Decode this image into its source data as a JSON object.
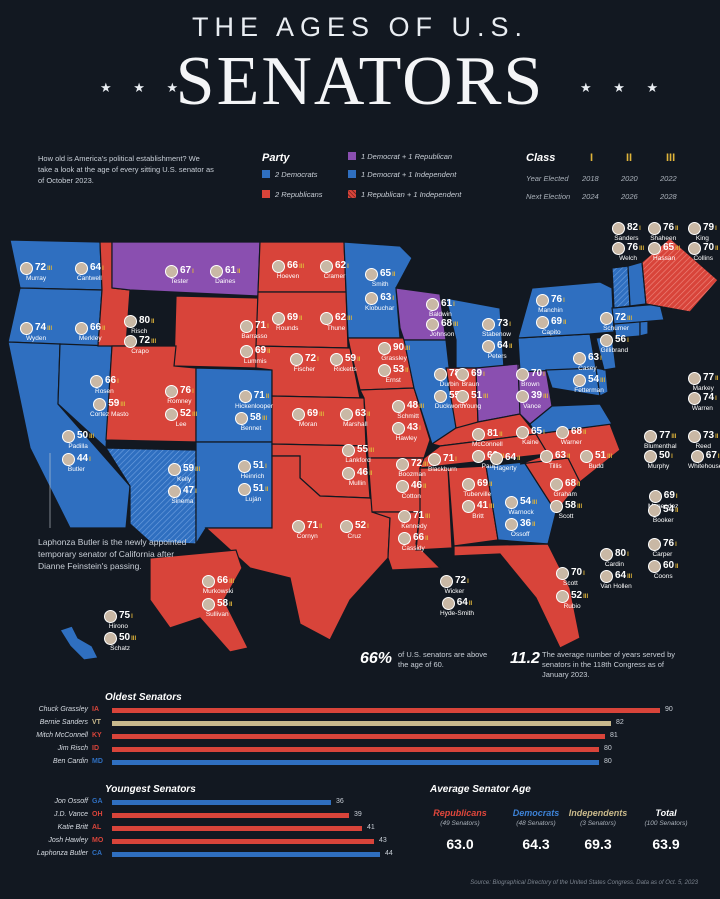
{
  "header": {
    "title_top": "THE AGES OF U.S.",
    "title_main": "SENATORS",
    "stars": "★ ★ ★"
  },
  "intro": "How old is America's political establishment? We take a look at the age of every sitting U.S. senator as of October 2023.",
  "party_legend": {
    "heading": "Party",
    "items": [
      {
        "label": "2 Democrats",
        "color": "#2f6fc0"
      },
      {
        "label": "2 Republicans",
        "color": "#d8443a"
      },
      {
        "label": "1 Democrat + 1 Republican",
        "color": "#8a4fb0"
      },
      {
        "label": "1 Democrat + 1 Independent",
        "color": "#2f6fc0"
      },
      {
        "label": "1 Republican + 1 Independent",
        "color": "#d8443a"
      }
    ]
  },
  "class_legend": {
    "heading": "Class",
    "classes": [
      "I",
      "II",
      "III"
    ],
    "rows": [
      {
        "label": "Year Elected",
        "values": [
          "2018",
          "2020",
          "2022"
        ]
      },
      {
        "label": "Next Election",
        "values": [
          "2024",
          "2026",
          "2028"
        ]
      }
    ]
  },
  "map": {
    "senators": [
      {
        "name": "Murray",
        "age": "72",
        "cls": "III"
      },
      {
        "name": "Cantwell",
        "age": "64",
        "cls": "I"
      },
      {
        "name": "Wyden",
        "age": "74",
        "cls": "III"
      },
      {
        "name": "Merkley",
        "age": "66",
        "cls": "II"
      },
      {
        "name": "Tester",
        "age": "67",
        "cls": "I"
      },
      {
        "name": "Daines",
        "age": "61",
        "cls": "II"
      },
      {
        "name": "Risch",
        "age": "80",
        "cls": "II"
      },
      {
        "name": "Crapo",
        "age": "72",
        "cls": "III"
      },
      {
        "name": "Hoeven",
        "age": "66",
        "cls": "III"
      },
      {
        "name": "Cramer",
        "age": "62",
        "cls": "I"
      },
      {
        "name": "Smith",
        "age": "65",
        "cls": "II"
      },
      {
        "name": "Klobuchar",
        "age": "63",
        "cls": "I"
      },
      {
        "name": "Rounds",
        "age": "69",
        "cls": "II"
      },
      {
        "name": "Thune",
        "age": "62",
        "cls": "III"
      },
      {
        "name": "Barrasso",
        "age": "71",
        "cls": "I"
      },
      {
        "name": "Lummis",
        "age": "69",
        "cls": "II"
      },
      {
        "name": "Rosen",
        "age": "66",
        "cls": "I"
      },
      {
        "name": "Cortez Masto",
        "age": "59",
        "cls": "III"
      },
      {
        "name": "Romney",
        "age": "76",
        "cls": "I"
      },
      {
        "name": "Lee",
        "age": "52",
        "cls": "III"
      },
      {
        "name": "Hickenlooper",
        "age": "71",
        "cls": "II"
      },
      {
        "name": "Bennet",
        "age": "58",
        "cls": "III"
      },
      {
        "name": "Fischer",
        "age": "72",
        "cls": "I"
      },
      {
        "name": "Ricketts",
        "age": "59",
        "cls": "II"
      },
      {
        "name": "Grassley",
        "age": "90",
        "cls": "III"
      },
      {
        "name": "Ernst",
        "age": "53",
        "cls": "II"
      },
      {
        "name": "Padilla",
        "age": "50",
        "cls": "III"
      },
      {
        "name": "Butler",
        "age": "44",
        "cls": "I"
      },
      {
        "name": "Kelly",
        "age": "59",
        "cls": "III"
      },
      {
        "name": "Sinema",
        "age": "47",
        "cls": "I"
      },
      {
        "name": "Heinrich",
        "age": "51",
        "cls": "I"
      },
      {
        "name": "Luján",
        "age": "51",
        "cls": "II"
      },
      {
        "name": "Moran",
        "age": "69",
        "cls": "III"
      },
      {
        "name": "Marshall",
        "age": "63",
        "cls": "II"
      },
      {
        "name": "Schmitt",
        "age": "48",
        "cls": "III"
      },
      {
        "name": "Hawley",
        "age": "43",
        "cls": "I"
      },
      {
        "name": "Lankford",
        "age": "55",
        "cls": "III"
      },
      {
        "name": "Mullin",
        "age": "46",
        "cls": "II"
      },
      {
        "name": "Boozman",
        "age": "72",
        "cls": "III"
      },
      {
        "name": "Cotton",
        "age": "46",
        "cls": "II"
      },
      {
        "name": "Cornyn",
        "age": "71",
        "cls": "II"
      },
      {
        "name": "Cruz",
        "age": "52",
        "cls": "I"
      },
      {
        "name": "Kennedy",
        "age": "71",
        "cls": "III"
      },
      {
        "name": "Cassidy",
        "age": "66",
        "cls": "II"
      },
      {
        "name": "Baldwin",
        "age": "61",
        "cls": "I"
      },
      {
        "name": "Johnson",
        "age": "68",
        "cls": "III"
      },
      {
        "name": "Durbin",
        "age": "78",
        "cls": "II"
      },
      {
        "name": "Duckworth",
        "age": "55",
        "cls": "III"
      },
      {
        "name": "Stabenow",
        "age": "73",
        "cls": "I"
      },
      {
        "name": "Peters",
        "age": "64",
        "cls": "II"
      },
      {
        "name": "Braun",
        "age": "69",
        "cls": "I"
      },
      {
        "name": "Young",
        "age": "51",
        "cls": "III"
      },
      {
        "name": "Brown",
        "age": "70",
        "cls": "I"
      },
      {
        "name": "Vance",
        "age": "39",
        "cls": "III"
      },
      {
        "name": "McConnell",
        "age": "81",
        "cls": "II"
      },
      {
        "name": "Paul",
        "age": "60",
        "cls": "III"
      },
      {
        "name": "Blackburn",
        "age": "71",
        "cls": "I"
      },
      {
        "name": "Hagerty",
        "age": "64",
        "cls": "II"
      },
      {
        "name": "Wicker",
        "age": "72",
        "cls": "I"
      },
      {
        "name": "Hyde-Smith",
        "age": "64",
        "cls": "II"
      },
      {
        "name": "Tuberville",
        "age": "69",
        "cls": "II"
      },
      {
        "name": "Britt",
        "age": "41",
        "cls": "III"
      },
      {
        "name": "Warnock",
        "age": "54",
        "cls": "III"
      },
      {
        "name": "Ossoff",
        "age": "36",
        "cls": "II"
      },
      {
        "name": "Scott",
        "age": "70",
        "cls": "I"
      },
      {
        "name": "Rubio",
        "age": "52",
        "cls": "III"
      },
      {
        "name": "Graham",
        "age": "68",
        "cls": "II"
      },
      {
        "name": "Scott",
        "age": "58",
        "cls": "III"
      },
      {
        "name": "Tillis",
        "age": "63",
        "cls": "II"
      },
      {
        "name": "Budd",
        "age": "51",
        "cls": "III"
      },
      {
        "name": "Manchin",
        "age": "76",
        "cls": "I"
      },
      {
        "name": "Capito",
        "age": "69",
        "cls": "II"
      },
      {
        "name": "Kaine",
        "age": "65",
        "cls": "I"
      },
      {
        "name": "Warner",
        "age": "68",
        "cls": "II"
      },
      {
        "name": "Schumer",
        "age": "72",
        "cls": "III"
      },
      {
        "name": "Gillibrand",
        "age": "56",
        "cls": "I"
      },
      {
        "name": "Casey",
        "age": "63",
        "cls": "I"
      },
      {
        "name": "Fetterman",
        "age": "54",
        "cls": "III"
      },
      {
        "name": "Cardin",
        "age": "80",
        "cls": "I"
      },
      {
        "name": "Van Hollen",
        "age": "64",
        "cls": "III"
      },
      {
        "name": "Carper",
        "age": "76",
        "cls": "I"
      },
      {
        "name": "Coons",
        "age": "60",
        "cls": "II"
      },
      {
        "name": "Menendez",
        "age": "69",
        "cls": "I"
      },
      {
        "name": "Booker",
        "age": "54",
        "cls": "II"
      },
      {
        "name": "Blumenthal",
        "age": "77",
        "cls": "III"
      },
      {
        "name": "Murphy",
        "age": "50",
        "cls": "I"
      },
      {
        "name": "Reed",
        "age": "73",
        "cls": "II"
      },
      {
        "name": "Whitehouse",
        "age": "67",
        "cls": "I"
      },
      {
        "name": "Markey",
        "age": "77",
        "cls": "II"
      },
      {
        "name": "Warren",
        "age": "74",
        "cls": "I"
      },
      {
        "name": "Sanders",
        "age": "82",
        "cls": "I"
      },
      {
        "name": "Welch",
        "age": "76",
        "cls": "III"
      },
      {
        "name": "Shaheen",
        "age": "76",
        "cls": "II"
      },
      {
        "name": "Hassan",
        "age": "65",
        "cls": "III"
      },
      {
        "name": "King",
        "age": "79",
        "cls": "I"
      },
      {
        "name": "Collins",
        "age": "70",
        "cls": "II"
      },
      {
        "name": "Murkowski",
        "age": "66",
        "cls": "III"
      },
      {
        "name": "Sullivan",
        "age": "58",
        "cls": "II"
      },
      {
        "name": "Hirono",
        "age": "75",
        "cls": "I"
      },
      {
        "name": "Schatz",
        "age": "50",
        "cls": "III"
      }
    ],
    "state_codes": [
      "WA",
      "OR",
      "MT",
      "ID",
      "ND",
      "MN",
      "SD",
      "WY",
      "NV",
      "UT",
      "CO",
      "NE",
      "IA",
      "CA",
      "AZ",
      "NM",
      "KS",
      "MO",
      "OK",
      "AR",
      "TX",
      "LA",
      "WI",
      "IL",
      "MI",
      "IN",
      "OH",
      "KY",
      "TN",
      "MS",
      "AL",
      "GA",
      "FL",
      "SC",
      "NC",
      "WV",
      "VA",
      "NY",
      "PA",
      "MD",
      "DE",
      "NJ",
      "CT",
      "RI",
      "MA",
      "VT",
      "NH",
      "ME",
      "AK",
      "HI"
    ]
  },
  "butler_note": "Laphonza Butler is the newly appointed temporary senator of California after Dianne Feinstein's passing.",
  "stats": [
    {
      "value": "66%",
      "text": "of U.S. senators are above the age of 60."
    },
    {
      "value": "11.2",
      "text": "The average number of years served by senators in the 118th Congress as of January 2023."
    }
  ],
  "oldest": {
    "heading": "Oldest Senators",
    "rows": [
      {
        "name": "Chuck Grassley",
        "state": "IA",
        "age": 90,
        "party": "R"
      },
      {
        "name": "Bernie Sanders",
        "state": "VT",
        "age": 82,
        "party": "I"
      },
      {
        "name": "Mitch McConnell",
        "state": "KY",
        "age": 81,
        "party": "R"
      },
      {
        "name": "Jim Risch",
        "state": "ID",
        "age": 80,
        "party": "R"
      },
      {
        "name": "Ben Cardin",
        "state": "MD",
        "age": 80,
        "party": "D"
      }
    ]
  },
  "youngest": {
    "heading": "Youngest Senators",
    "rows": [
      {
        "name": "Jon Ossoff",
        "state": "GA",
        "age": 36,
        "party": "D"
      },
      {
        "name": "J.D. Vance",
        "state": "OH",
        "age": 39,
        "party": "R"
      },
      {
        "name": "Katie Britt",
        "state": "AL",
        "age": 41,
        "party": "R"
      },
      {
        "name": "Josh Hawley",
        "state": "MO",
        "age": 43,
        "party": "R"
      },
      {
        "name": "Laphonza Butler",
        "state": "CA",
        "age": 44,
        "party": "D"
      }
    ]
  },
  "average": {
    "heading": "Average Senator Age",
    "parties": [
      {
        "name": "Republicans",
        "sub": "(49 Senators)",
        "value": "63.0",
        "color": "#e0473c"
      },
      {
        "name": "Democrats",
        "sub": "(48 Senators)",
        "value": "64.3",
        "color": "#3d82d6"
      },
      {
        "name": "Independents",
        "sub": "(3 Senators)",
        "value": "69.3",
        "color": "#c9b98a"
      },
      {
        "name": "Total",
        "sub": "(100 Senators)",
        "value": "63.9",
        "color": "#ffffff"
      }
    ]
  },
  "colors": {
    "rep": "#d8443a",
    "dem": "#2f6fc0",
    "ind": "#c8b98d",
    "split": "#8a4fb0",
    "gold": "#e0b43a"
  },
  "source": "Source: Biographical Directory of the United States Congress. Data as of Oct. 5, 2023",
  "chart_data": [
    {
      "type": "bar",
      "title": "Oldest Senators",
      "categories": [
        "Chuck Grassley",
        "Bernie Sanders",
        "Mitch McConnell",
        "Jim Risch",
        "Ben Cardin"
      ],
      "values": [
        90,
        82,
        81,
        80,
        80
      ]
    },
    {
      "type": "bar",
      "title": "Youngest Senators",
      "categories": [
        "Jon Ossoff",
        "J.D. Vance",
        "Katie Britt",
        "Josh Hawley",
        "Laphonza Butler"
      ],
      "values": [
        36,
        39,
        41,
        43,
        44
      ]
    },
    {
      "type": "table",
      "title": "Average Senator Age",
      "categories": [
        "Republicans",
        "Democrats",
        "Independents",
        "Total"
      ],
      "values": [
        63.0,
        64.3,
        69.3,
        63.9
      ]
    }
  ]
}
